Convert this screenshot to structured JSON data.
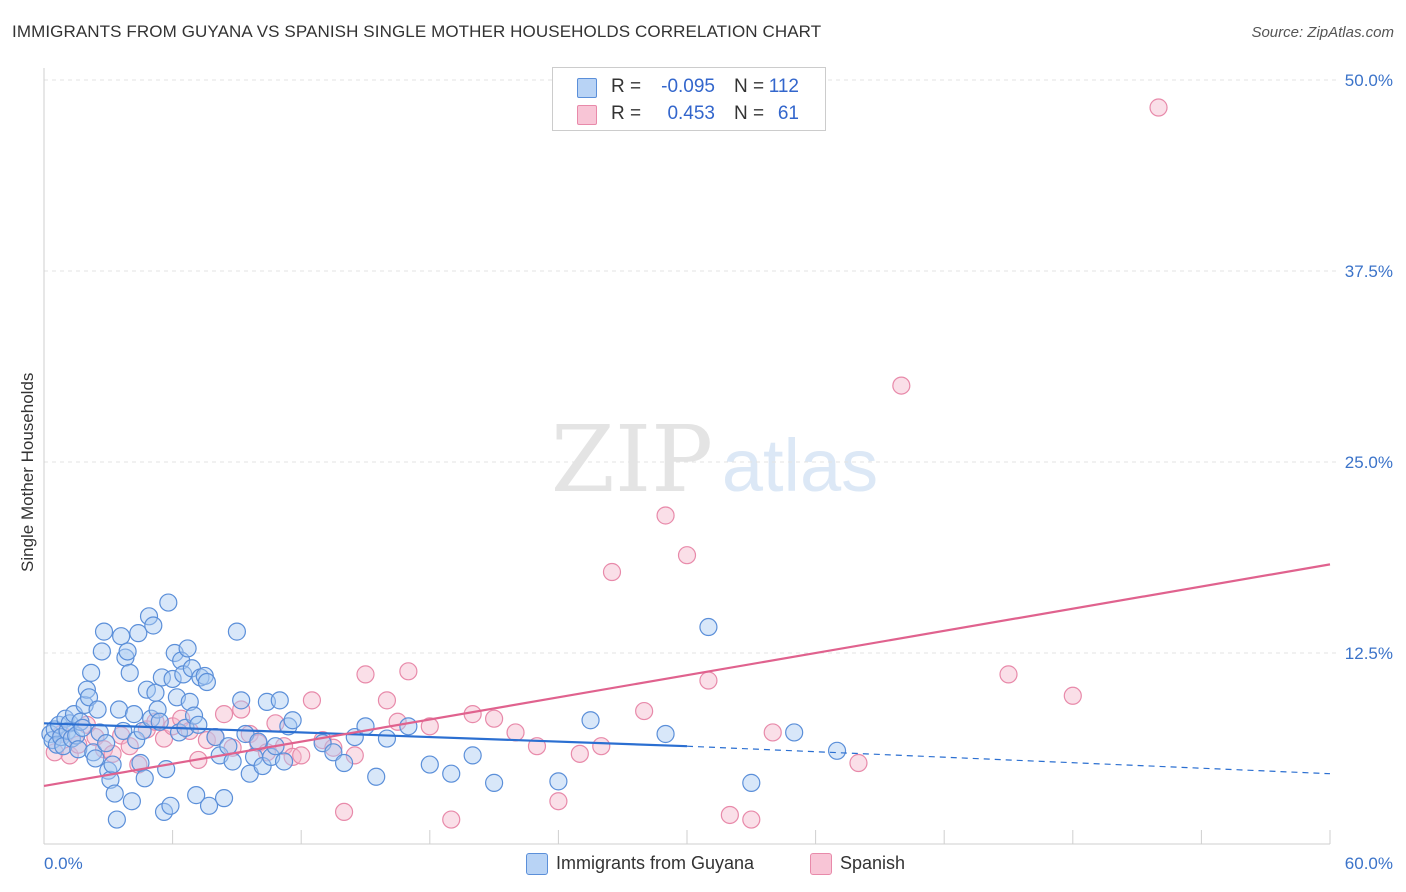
{
  "title": "IMMIGRANTS FROM GUYANA VS SPANISH SINGLE MOTHER HOUSEHOLDS CORRELATION CHART",
  "source": "Source: ZipAtlas.com",
  "watermark": {
    "zip": "ZIP",
    "atlas": "atlas"
  },
  "colors": {
    "blue_fill": "#a9c9f2",
    "blue_stroke": "#5b8fd9",
    "blue_line": "#2b6fd1",
    "pink_fill": "#f5b8cc",
    "pink_stroke": "#e88aaa",
    "pink_line": "#e0628e",
    "tick_text": "#3b73c9",
    "grid": "#e3e3e3"
  },
  "stats": [
    {
      "label": "R =",
      "r": "-0.095",
      "n_label": "N =",
      "n": "112",
      "fill": "#b8d3f5",
      "stroke": "#5b8fd9"
    },
    {
      "label": "R =",
      "r": "0.453",
      "n_label": "N =",
      "n": "61",
      "fill": "#f8c5d6",
      "stroke": "#e88aaa"
    }
  ],
  "legend": [
    {
      "label": "Immigrants from Guyana",
      "fill": "#b8d3f5",
      "stroke": "#5b8fd9"
    },
    {
      "label": "Spanish",
      "fill": "#f8c5d6",
      "stroke": "#e88aaa"
    }
  ],
  "chart_data": {
    "type": "scatter",
    "ylabel": "Single Mother Households",
    "xlim": [
      0,
      60
    ],
    "ylim": [
      0,
      50
    ],
    "x_tick_labels": [
      "0.0%",
      "60.0%"
    ],
    "y_ticks": [
      12.5,
      25.0,
      37.5,
      50.0
    ],
    "y_tick_labels": [
      "12.5%",
      "25.0%",
      "37.5%",
      "50.0%"
    ],
    "grid": "horizontal dashed",
    "series": [
      {
        "name": "Immigrants from Guyana",
        "trend": {
          "x0": 0,
          "y0": 7.9,
          "x1": 30,
          "y1": 6.4,
          "dashed_to_x": 60,
          "dashed_to_y": 4.6
        },
        "points": [
          [
            0.3,
            7.2
          ],
          [
            0.4,
            6.8
          ],
          [
            0.5,
            7.5
          ],
          [
            0.6,
            6.5
          ],
          [
            0.7,
            7.8
          ],
          [
            0.8,
            7.0
          ],
          [
            0.9,
            6.4
          ],
          [
            1.0,
            8.2
          ],
          [
            1.1,
            7.4
          ],
          [
            1.2,
            7.9
          ],
          [
            1.3,
            6.9
          ],
          [
            1.4,
            8.5
          ],
          [
            1.5,
            7.1
          ],
          [
            1.6,
            6.2
          ],
          [
            1.7,
            8.0
          ],
          [
            1.8,
            7.6
          ],
          [
            1.9,
            9.1
          ],
          [
            2.0,
            10.1
          ],
          [
            2.1,
            9.6
          ],
          [
            2.2,
            11.2
          ],
          [
            2.3,
            6.0
          ],
          [
            2.4,
            5.6
          ],
          [
            2.5,
            8.8
          ],
          [
            2.6,
            7.3
          ],
          [
            2.7,
            12.6
          ],
          [
            2.8,
            13.9
          ],
          [
            2.9,
            6.6
          ],
          [
            3.0,
            4.8
          ],
          [
            3.1,
            4.2
          ],
          [
            3.2,
            5.2
          ],
          [
            3.3,
            3.3
          ],
          [
            3.4,
            1.6
          ],
          [
            3.5,
            8.8
          ],
          [
            3.6,
            13.6
          ],
          [
            3.7,
            7.4
          ],
          [
            3.8,
            12.2
          ],
          [
            3.9,
            12.6
          ],
          [
            4.0,
            11.2
          ],
          [
            4.1,
            2.8
          ],
          [
            4.2,
            8.5
          ],
          [
            4.3,
            6.8
          ],
          [
            4.4,
            13.8
          ],
          [
            4.5,
            5.3
          ],
          [
            4.6,
            7.4
          ],
          [
            4.7,
            4.3
          ],
          [
            4.8,
            10.1
          ],
          [
            4.9,
            14.9
          ],
          [
            5.0,
            8.2
          ],
          [
            5.1,
            14.3
          ],
          [
            5.2,
            9.9
          ],
          [
            5.3,
            8.8
          ],
          [
            5.4,
            8.0
          ],
          [
            5.5,
            10.9
          ],
          [
            5.6,
            2.1
          ],
          [
            5.7,
            4.9
          ],
          [
            5.8,
            15.8
          ],
          [
            5.9,
            2.5
          ],
          [
            6.0,
            10.8
          ],
          [
            6.1,
            12.5
          ],
          [
            6.2,
            9.6
          ],
          [
            6.3,
            7.3
          ],
          [
            6.4,
            12.0
          ],
          [
            6.5,
            11.1
          ],
          [
            6.6,
            7.6
          ],
          [
            6.7,
            12.8
          ],
          [
            6.8,
            9.3
          ],
          [
            6.9,
            11.5
          ],
          [
            7.0,
            8.4
          ],
          [
            7.1,
            3.2
          ],
          [
            7.2,
            7.8
          ],
          [
            7.3,
            10.9
          ],
          [
            7.5,
            11.0
          ],
          [
            7.6,
            10.6
          ],
          [
            7.7,
            2.5
          ],
          [
            8.0,
            7.0
          ],
          [
            8.2,
            5.8
          ],
          [
            8.4,
            3.0
          ],
          [
            8.6,
            6.4
          ],
          [
            8.8,
            5.4
          ],
          [
            9.0,
            13.9
          ],
          [
            9.2,
            9.4
          ],
          [
            9.4,
            7.2
          ],
          [
            9.6,
            4.6
          ],
          [
            9.8,
            5.7
          ],
          [
            10.0,
            6.7
          ],
          [
            10.2,
            5.1
          ],
          [
            10.4,
            9.3
          ],
          [
            10.6,
            5.7
          ],
          [
            10.8,
            6.4
          ],
          [
            11.0,
            9.4
          ],
          [
            11.2,
            5.4
          ],
          [
            11.4,
            7.7
          ],
          [
            11.6,
            8.1
          ],
          [
            13.0,
            6.6
          ],
          [
            13.5,
            6.0
          ],
          [
            14.0,
            5.3
          ],
          [
            14.5,
            7.0
          ],
          [
            15.0,
            7.7
          ],
          [
            15.5,
            4.4
          ],
          [
            16.0,
            6.9
          ],
          [
            17.0,
            7.7
          ],
          [
            18.0,
            5.2
          ],
          [
            19.0,
            4.6
          ],
          [
            20.0,
            5.8
          ],
          [
            21.0,
            4.0
          ],
          [
            24.0,
            4.1
          ],
          [
            25.5,
            8.1
          ],
          [
            29.0,
            7.2
          ],
          [
            31.0,
            14.2
          ],
          [
            33.0,
            4.0
          ],
          [
            35.0,
            7.3
          ],
          [
            37.0,
            6.1
          ]
        ]
      },
      {
        "name": "Spanish",
        "trend": {
          "x0": 0,
          "y0": 3.8,
          "x1": 60,
          "y1": 18.3
        },
        "points": [
          [
            0.5,
            6.0
          ],
          [
            0.8,
            7.2
          ],
          [
            1.2,
            5.8
          ],
          [
            1.6,
            6.5
          ],
          [
            2.0,
            7.8
          ],
          [
            2.4,
            7.0
          ],
          [
            2.8,
            6.2
          ],
          [
            3.2,
            5.9
          ],
          [
            3.6,
            7.1
          ],
          [
            4.0,
            6.4
          ],
          [
            4.4,
            5.2
          ],
          [
            4.8,
            7.5
          ],
          [
            5.2,
            8.0
          ],
          [
            5.6,
            6.9
          ],
          [
            6.0,
            7.7
          ],
          [
            6.4,
            8.2
          ],
          [
            6.8,
            7.4
          ],
          [
            7.2,
            5.5
          ],
          [
            7.6,
            6.8
          ],
          [
            8.0,
            7.0
          ],
          [
            8.4,
            8.5
          ],
          [
            8.8,
            6.3
          ],
          [
            9.2,
            8.8
          ],
          [
            9.6,
            7.2
          ],
          [
            10.0,
            6.6
          ],
          [
            10.4,
            6.0
          ],
          [
            10.8,
            7.9
          ],
          [
            11.2,
            6.4
          ],
          [
            11.6,
            5.7
          ],
          [
            12.0,
            5.8
          ],
          [
            12.5,
            9.4
          ],
          [
            13.0,
            6.8
          ],
          [
            13.5,
            6.3
          ],
          [
            14.0,
            2.1
          ],
          [
            14.5,
            5.8
          ],
          [
            15.0,
            11.1
          ],
          [
            16.0,
            9.4
          ],
          [
            16.5,
            8.0
          ],
          [
            17.0,
            11.3
          ],
          [
            18.0,
            7.7
          ],
          [
            19.0,
            1.6
          ],
          [
            20.0,
            8.5
          ],
          [
            21.0,
            8.2
          ],
          [
            22.0,
            7.3
          ],
          [
            23.0,
            6.4
          ],
          [
            24.0,
            2.8
          ],
          [
            25.0,
            5.9
          ],
          [
            26.0,
            6.4
          ],
          [
            26.5,
            17.8
          ],
          [
            28.0,
            8.7
          ],
          [
            29.0,
            21.5
          ],
          [
            30.0,
            18.9
          ],
          [
            31.0,
            10.7
          ],
          [
            32.0,
            1.9
          ],
          [
            33.0,
            1.6
          ],
          [
            34.0,
            7.3
          ],
          [
            38.0,
            5.3
          ],
          [
            40.0,
            30.0
          ],
          [
            45.0,
            11.1
          ],
          [
            48.0,
            9.7
          ],
          [
            52.0,
            48.2
          ]
        ]
      }
    ]
  }
}
